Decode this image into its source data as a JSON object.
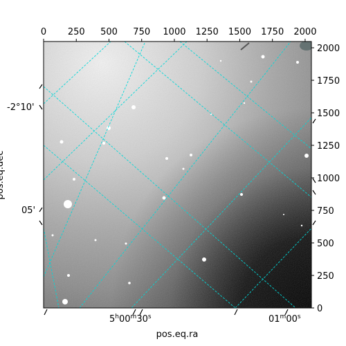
{
  "chart_data": {
    "type": "image",
    "xlabel": "pos.eq.ra",
    "ylabel": "pos.eq.dec",
    "pixel_axes": {
      "xlim": [
        0,
        2048
      ],
      "ylim": [
        0,
        2048
      ],
      "top_ticks": [
        0,
        250,
        500,
        750,
        1000,
        1250,
        1500,
        1750,
        2000
      ],
      "right_ticks": [
        0,
        250,
        500,
        750,
        1000,
        1250,
        1500,
        1750,
        2000
      ]
    },
    "world_ticks": {
      "ra_labels": [
        {
          "h": "5",
          "m": "00",
          "s": "30",
          "label": "5h00m30s"
        },
        {
          "m": "01",
          "s": "00",
          "label": "01m00s"
        }
      ],
      "dec_labels": [
        "-2°10'",
        "05'"
      ]
    },
    "grid": true,
    "grid_color": "#00d8d8",
    "colormap": "gray"
  }
}
